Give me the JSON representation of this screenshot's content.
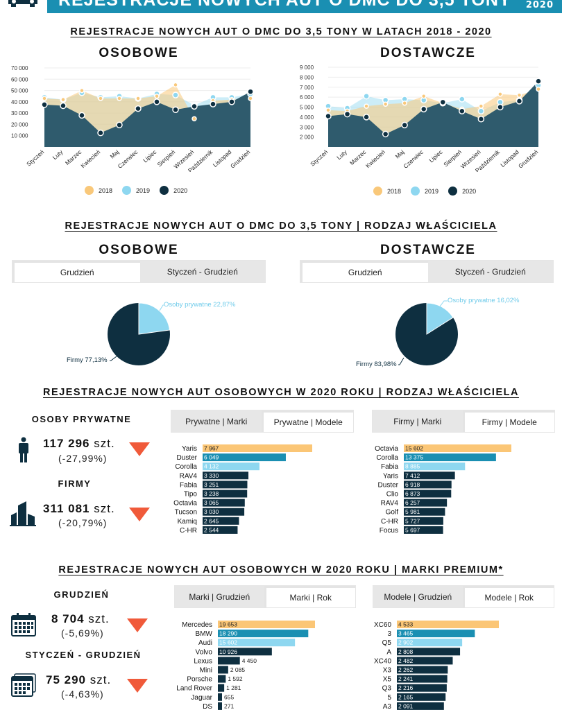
{
  "header": {
    "title": "REJESTRACJE NOWYCH AUT O DMC DO 3,5 TONY",
    "year": "2020"
  },
  "section1": {
    "title": "REJESTRACJE NOWYCH AUT O DMC DO 3,5 TONY W LATACH 2018 - 2020",
    "legend": [
      "2018",
      "2019",
      "2020"
    ],
    "colors": {
      "2018": "#f9c87a",
      "2019": "#8ed7f0",
      "2020": "#0e2f40"
    }
  },
  "chart_data": [
    {
      "type": "area",
      "title": "OSOBOWE",
      "categories": [
        "Styczeń",
        "Luty",
        "Marzec",
        "Kwiecień",
        "Maj",
        "Czerwiec",
        "Lipiec",
        "Sierpień",
        "Wrzesień",
        "Październik",
        "Listopad",
        "Grudzień"
      ],
      "yticks": [
        "70 000",
        "60 000",
        "50 000",
        "40 000",
        "30 000",
        "20 000",
        "10 000"
      ],
      "ylim": [
        0,
        70000
      ],
      "series": [
        {
          "name": "2018",
          "values": [
            43000,
            42000,
            50000,
            43000,
            43000,
            43000,
            45000,
            55000,
            25000,
            41000,
            42000,
            43000
          ]
        },
        {
          "name": "2019",
          "values": [
            44000,
            42000,
            48000,
            44000,
            45000,
            43000,
            47000,
            46000,
            37000,
            44000,
            44000,
            47000
          ]
        },
        {
          "name": "2020",
          "values": [
            37500,
            36500,
            28000,
            12500,
            19500,
            34000,
            40000,
            33000,
            36000,
            38000,
            40000,
            49000
          ]
        }
      ]
    },
    {
      "type": "area",
      "title": "DOSTAWCZE",
      "categories": [
        "Styczeń",
        "Luty",
        "Marzec",
        "Kwiecień",
        "Maj",
        "Czerwiec",
        "Lipiec",
        "Sierpień",
        "Wrzesień",
        "Październik",
        "Listopad",
        "Grudzień"
      ],
      "yticks": [
        "9 000",
        "8 000",
        "7 000",
        "6 000",
        "5 000",
        "4 000",
        "3 000",
        "2 000"
      ],
      "ylim": [
        1000,
        9000
      ],
      "series": [
        {
          "name": "2018",
          "values": [
            4700,
            4600,
            5100,
            5300,
            5400,
            6100,
            5400,
            4800,
            5100,
            6300,
            6200,
            6800
          ]
        },
        {
          "name": "2019",
          "values": [
            5100,
            4900,
            6100,
            5700,
            5800,
            5700,
            5400,
            5800,
            4600,
            5500,
            5700,
            7200
          ]
        },
        {
          "name": "2020",
          "values": [
            4100,
            4300,
            4000,
            2300,
            3200,
            4800,
            5500,
            4600,
            3800,
            5000,
            5600,
            7600
          ]
        }
      ]
    },
    {
      "type": "pie",
      "title": "OSOBOWE",
      "labels": [
        "Osoby prywatne",
        "Firmy"
      ],
      "values": [
        22.87,
        77.13
      ],
      "display": [
        "Osoby prywatne 22,87%",
        "Firmy 77,13%"
      ]
    },
    {
      "type": "pie",
      "title": "DOSTAWCZE",
      "labels": [
        "Osoby prywatne",
        "Firmy"
      ],
      "values": [
        16.02,
        83.98
      ],
      "display": [
        "Osoby prywatne 16,02%",
        "Firmy 83,98%"
      ]
    },
    {
      "type": "bar",
      "title": "Prywatne | Modele",
      "categories": [
        "Yaris",
        "Duster",
        "Corolla",
        "RAV4",
        "Fabia",
        "Tipo",
        "Octavia",
        "Tucson",
        "Kamiq",
        "C-HR"
      ],
      "values": [
        7967,
        6049,
        4132,
        3330,
        3251,
        3238,
        3065,
        3030,
        2645,
        2544
      ],
      "labels": [
        "7 967",
        "6 049",
        "4 132",
        "3 330",
        "3 251",
        "3 238",
        "3 065",
        "3 030",
        "2 645",
        "2 544"
      ]
    },
    {
      "type": "bar",
      "title": "Firmy | Modele",
      "categories": [
        "Octavia",
        "Corolla",
        "Fabia",
        "Yaris",
        "Duster",
        "Clio",
        "RAV4",
        "Golf",
        "C-HR",
        "Focus"
      ],
      "values": [
        15602,
        13375,
        8885,
        7412,
        6918,
        6873,
        6257,
        5981,
        5727,
        5697
      ],
      "labels": [
        "15 602",
        "13 375",
        "8 885",
        "7 412",
        "6 918",
        "6 873",
        "6 257",
        "5 981",
        "5 727",
        "5 697"
      ]
    },
    {
      "type": "bar",
      "title": "Marki | Rok",
      "categories": [
        "Mercedes",
        "BMW",
        "Audi",
        "Volvo",
        "Lexus",
        "Mini",
        "Porsche",
        "Land Rover",
        "Jaguar",
        "DS"
      ],
      "values": [
        19653,
        18290,
        15602,
        10926,
        4450,
        2085,
        1592,
        1281,
        655,
        271
      ],
      "labels": [
        "19 653",
        "18 290",
        "15 602",
        "10 926",
        "4 450",
        "2 085",
        "1 592",
        "1 281",
        "655",
        "271"
      ]
    },
    {
      "type": "bar",
      "title": "Modele | Rok",
      "categories": [
        "XC60",
        "3",
        "Q5",
        "A",
        "XC40",
        "X3",
        "X5",
        "Q3",
        "5",
        "A3"
      ],
      "values": [
        4533,
        3465,
        2902,
        2808,
        2482,
        2262,
        2241,
        2216,
        2165,
        2091
      ],
      "labels": [
        "4 533",
        "3 465",
        "2 902",
        "2 808",
        "2 482",
        "2 262",
        "2 241",
        "2 216",
        "2 165",
        "2 091"
      ]
    }
  ],
  "section2": {
    "title": "REJESTRACJE NOWYCH AUT O DMC DO 3,5 TONY | RODZAJ WŁAŚCICIELA",
    "left_title": "OSOBOWE",
    "right_title": "DOSTAWCZE",
    "tabs": [
      "Grudzień",
      "Styczeń - Grudzień"
    ]
  },
  "section3": {
    "title": "REJESTRACJE NOWYCH AUT OSOBOWYCH W 2020 ROKU | RODZAJ WŁAŚCICIELA",
    "private_heading": "OSOBY PRYWATNE",
    "private_value": "117 296",
    "private_unit": "szt.",
    "private_pct": "(-27,99%)",
    "firms_heading": "FIRMY",
    "firms_value": "311 081",
    "firms_unit": "szt.",
    "firms_pct": "(-20,79%)",
    "tabs_left": [
      "Prywatne | Marki",
      "Prywatne | Modele"
    ],
    "tabs_right": [
      "Firmy | Marki",
      "Firmy | Modele"
    ]
  },
  "section4": {
    "title": "REJESTRACJE NOWYCH AUT OSOBOWYCH W 2020 ROKU | MARKI PREMIUM*",
    "dec_heading": "GRUDZIEŃ",
    "dec_value": "8 704",
    "dec_unit": "szt.",
    "dec_pct": "(-5,69%)",
    "year_heading": "STYCZEŃ - GRUDZIEŃ",
    "year_value": "75 290",
    "year_unit": "szt.",
    "year_pct": "(-4,63%)",
    "tabs_left": [
      "Marki | Grudzień",
      "Marki | Rok"
    ],
    "tabs_right": [
      "Modele | Grudzień",
      "Modele | Rok"
    ]
  },
  "bar_colors": [
    "#fbc676",
    "#1a8fb2",
    "#8ed7f0",
    "#0e2f40"
  ],
  "icons": [
    "car-icon",
    "person-icon",
    "building-icon",
    "calendar-icon",
    "calendar-multi-icon",
    "arrow-down-icon"
  ]
}
